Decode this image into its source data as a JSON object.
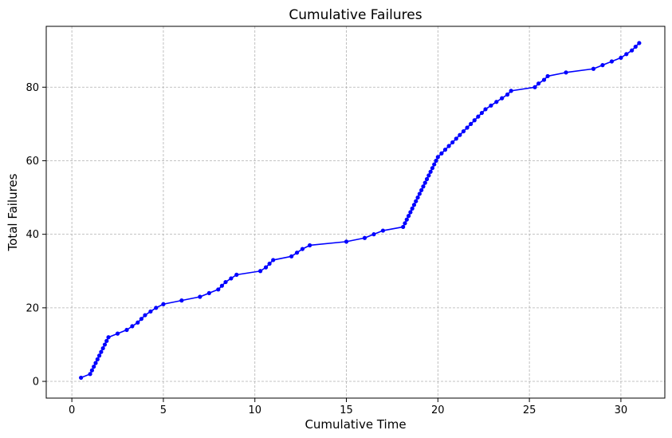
{
  "chart_data": {
    "type": "line",
    "title": "Cumulative Failures",
    "xlabel": "Cumulative Time",
    "ylabel": "Total Failures",
    "xlim": [
      -1.4,
      32.4
    ],
    "ylim": [
      -4.55,
      96.55
    ],
    "xticks": [
      0,
      5,
      10,
      15,
      20,
      25,
      30
    ],
    "yticks": [
      0,
      20,
      40,
      60,
      80
    ],
    "grid": true,
    "color": "#0000ff",
    "marker": "circle",
    "series": [
      {
        "x": [
          0.5,
          1.0,
          1.1,
          1.2,
          1.3,
          1.4,
          1.5,
          1.6,
          1.7,
          1.8,
          1.9,
          2.0,
          2.5,
          3.0,
          3.3,
          3.6,
          3.8,
          4.0,
          4.3,
          4.6,
          5.0,
          6.0,
          7.0,
          7.5,
          8.0,
          8.2,
          8.4,
          8.7,
          9.0,
          10.3,
          10.6,
          10.8,
          11.0,
          12.0,
          12.3,
          12.6,
          13.0,
          15.0,
          16.0,
          16.5,
          17.0,
          18.1,
          18.2,
          18.3,
          18.4,
          18.5,
          18.6,
          18.7,
          18.8,
          18.9,
          19.0,
          19.1,
          19.2,
          19.3,
          19.4,
          19.5,
          19.6,
          19.7,
          19.8,
          19.9,
          20.0,
          20.2,
          20.4,
          20.6,
          20.8,
          21.0,
          21.2,
          21.4,
          21.6,
          21.8,
          22.0,
          22.2,
          22.4,
          22.6,
          22.9,
          23.2,
          23.5,
          23.8,
          24.0,
          25.3,
          25.5,
          25.8,
          26.0,
          27.0,
          28.5,
          29.0,
          29.5,
          30.0,
          30.3,
          30.6,
          30.8,
          31.0
        ],
        "y": [
          1,
          2,
          3,
          4,
          5,
          6,
          7,
          8,
          9,
          10,
          11,
          12,
          13,
          14,
          15,
          16,
          17,
          18,
          19,
          20,
          21,
          22,
          23,
          24,
          25,
          26,
          27,
          28,
          29,
          30,
          31,
          32,
          33,
          34,
          35,
          36,
          37,
          38,
          39,
          40,
          41,
          42,
          43,
          44,
          45,
          46,
          47,
          48,
          49,
          50,
          51,
          52,
          53,
          54,
          55,
          56,
          57,
          58,
          59,
          60,
          61,
          62,
          63,
          64,
          65,
          66,
          67,
          68,
          69,
          70,
          71,
          72,
          73,
          74,
          75,
          76,
          77,
          78,
          79,
          80,
          81,
          82,
          83,
          84,
          85,
          86,
          87,
          88,
          89,
          90,
          91,
          92
        ]
      }
    ]
  }
}
